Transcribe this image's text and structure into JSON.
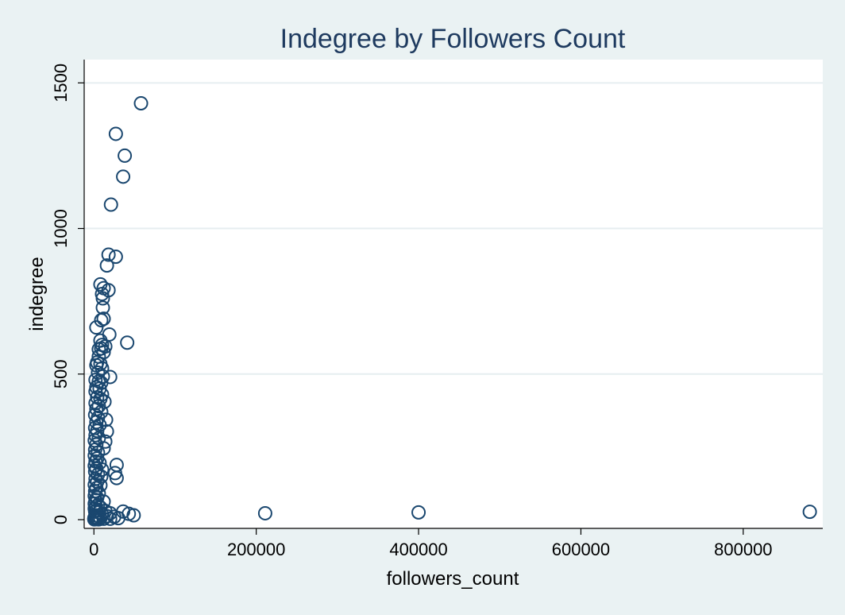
{
  "chart_data": {
    "type": "scatter",
    "title": "Indegree by Followers Count",
    "xlabel": "followers_count",
    "ylabel": "indegree",
    "xlim": [
      -12000,
      898000
    ],
    "ylim": [
      -30,
      1580
    ],
    "x_ticks": [
      0,
      200000,
      400000,
      600000,
      800000
    ],
    "x_tick_labels": [
      "0",
      "200000",
      "400000",
      "600000",
      "800000"
    ],
    "y_ticks": [
      0,
      500,
      1000,
      1500
    ],
    "y_tick_labels": [
      "0",
      "500",
      "1000",
      "1500"
    ],
    "grid": "horizontal",
    "legend": "none",
    "marker": "hollow circle",
    "colors": {
      "background": "#eaf2f3",
      "plot_area": "#ffffff",
      "marker": "#1a476f",
      "title": "#1e3a5f",
      "grid": "#e6eef0"
    },
    "series": [
      {
        "points": [
          [
            58000,
            1430
          ],
          [
            27000,
            1325
          ],
          [
            38000,
            1250
          ],
          [
            36000,
            1178
          ],
          [
            21000,
            1082
          ],
          [
            18000,
            910
          ],
          [
            27000,
            903
          ],
          [
            16000,
            873
          ],
          [
            8000,
            808
          ],
          [
            12000,
            795
          ],
          [
            18000,
            788
          ],
          [
            10000,
            775
          ],
          [
            11000,
            760
          ],
          [
            11000,
            728
          ],
          [
            12000,
            690
          ],
          [
            9000,
            685
          ],
          [
            3000,
            660
          ],
          [
            19000,
            636
          ],
          [
            41000,
            608
          ],
          [
            8000,
            615
          ],
          [
            10000,
            600
          ],
          [
            14000,
            595
          ],
          [
            9000,
            588
          ],
          [
            6000,
            585
          ],
          [
            12000,
            575
          ],
          [
            6000,
            560
          ],
          [
            4000,
            540
          ],
          [
            8000,
            535
          ],
          [
            3000,
            530
          ],
          [
            10000,
            520
          ],
          [
            5000,
            505
          ],
          [
            20000,
            490
          ],
          [
            11000,
            492
          ],
          [
            2000,
            480
          ],
          [
            6000,
            475
          ],
          [
            9000,
            470
          ],
          [
            3000,
            455
          ],
          [
            7000,
            450
          ],
          [
            2000,
            440
          ],
          [
            10000,
            430
          ],
          [
            4000,
            420
          ],
          [
            8000,
            415
          ],
          [
            13000,
            405
          ],
          [
            2000,
            400
          ],
          [
            6000,
            390
          ],
          [
            3000,
            380
          ],
          [
            9000,
            370
          ],
          [
            1500,
            360
          ],
          [
            5000,
            350
          ],
          [
            15000,
            343
          ],
          [
            3000,
            335
          ],
          [
            7000,
            325
          ],
          [
            1500,
            315
          ],
          [
            4000,
            305
          ],
          [
            16000,
            303
          ],
          [
            2000,
            290
          ],
          [
            6000,
            280
          ],
          [
            1000,
            272
          ],
          [
            14000,
            268
          ],
          [
            3000,
            258
          ],
          [
            12000,
            245
          ],
          [
            1500,
            240
          ],
          [
            5000,
            230
          ],
          [
            1000,
            220
          ],
          [
            4000,
            210
          ],
          [
            2000,
            200
          ],
          [
            7000,
            195
          ],
          [
            28000,
            188
          ],
          [
            1000,
            185
          ],
          [
            3000,
            175
          ],
          [
            10000,
            172
          ],
          [
            26000,
            160
          ],
          [
            1500,
            165
          ],
          [
            5000,
            155
          ],
          [
            28000,
            143
          ],
          [
            9000,
            148
          ],
          [
            2000,
            140
          ],
          [
            4000,
            130
          ],
          [
            1000,
            120
          ],
          [
            8000,
            118
          ],
          [
            3000,
            108
          ],
          [
            1500,
            98
          ],
          [
            6000,
            90
          ],
          [
            1000,
            82
          ],
          [
            4000,
            75
          ],
          [
            2000,
            68
          ],
          [
            12000,
            62
          ],
          [
            1000,
            55
          ],
          [
            5000,
            50
          ],
          [
            2500,
            45
          ],
          [
            8000,
            42
          ],
          [
            1000,
            38
          ],
          [
            3000,
            32
          ],
          [
            14000,
            30
          ],
          [
            1500,
            28
          ],
          [
            6000,
            25
          ],
          [
            20000,
            22
          ],
          [
            36000,
            28
          ],
          [
            43000,
            20
          ],
          [
            49000,
            15
          ],
          [
            10000,
            18
          ],
          [
            2000,
            15
          ],
          [
            5000,
            12
          ],
          [
            16000,
            12
          ],
          [
            25000,
            10
          ],
          [
            30000,
            5
          ],
          [
            1000,
            8
          ],
          [
            3000,
            6
          ],
          [
            8000,
            5
          ],
          [
            500,
            4
          ],
          [
            2000,
            3
          ],
          [
            12000,
            3
          ],
          [
            20000,
            3
          ],
          [
            1000,
            2
          ],
          [
            4000,
            2
          ],
          [
            6000,
            1
          ],
          [
            500,
            1
          ],
          [
            211000,
            22
          ],
          [
            400000,
            25
          ],
          [
            882000,
            27
          ]
        ]
      }
    ]
  }
}
